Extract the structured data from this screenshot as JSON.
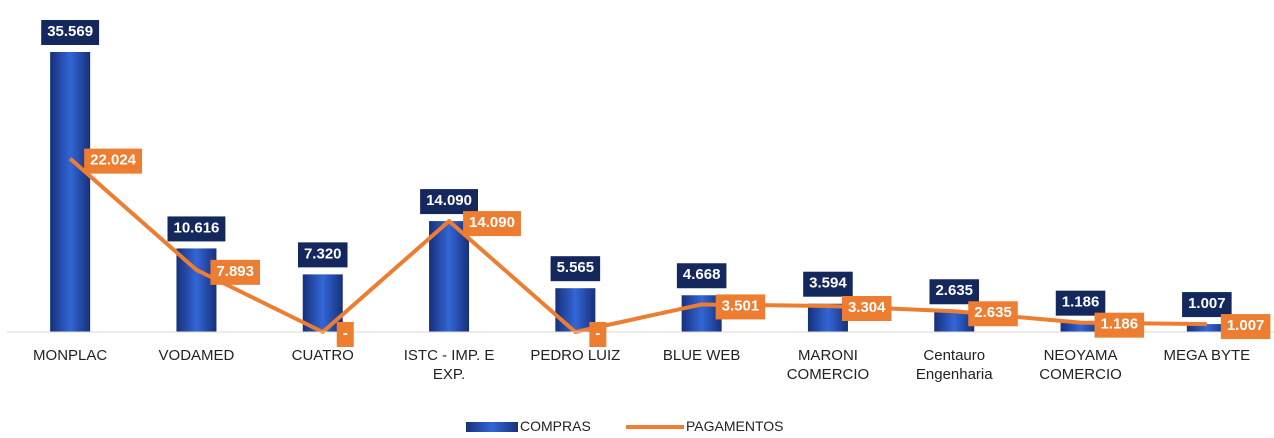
{
  "chart_data": {
    "type": "bar",
    "categories": [
      "MONPLAC",
      "VODAMED",
      "CUATRO",
      "ISTC - IMP. E EXP.",
      "PEDRO LUIZ",
      "BLUE WEB",
      "MARONI COMERCIO",
      "Centauro Engenharia",
      "NEOYAMA COMERCIO",
      "MEGA BYTE"
    ],
    "series": [
      {
        "name": "COMPRAS",
        "color": "#2a52be",
        "values": [
          35569,
          10616,
          7320,
          14090,
          5565,
          4668,
          3594,
          2635,
          1186,
          1007
        ],
        "value_labels": [
          "35.569",
          "10.616",
          "7.320",
          "14.090",
          "5.565",
          "4.668",
          "3.594",
          "2.635",
          "1.186",
          "1.007"
        ]
      },
      {
        "name": "PAGAMENTOS",
        "type": "line",
        "color": "#ed7d31",
        "values": [
          22024,
          7893,
          0,
          14090,
          0,
          3501,
          3304,
          2635,
          1186,
          1007
        ],
        "value_labels": [
          "22.024",
          "7.893",
          "-",
          "14.090",
          "-",
          "3.501",
          "3.304",
          "2.635",
          "1.186",
          "1.007"
        ]
      }
    ]
  }
}
